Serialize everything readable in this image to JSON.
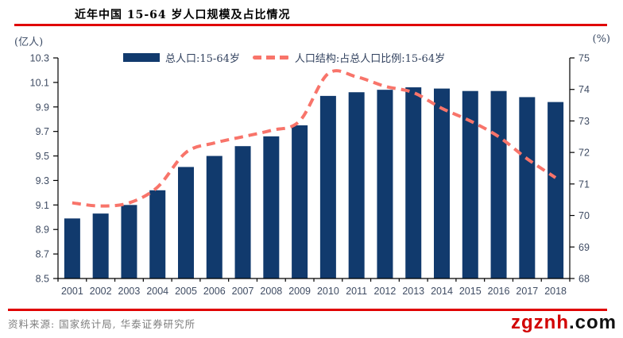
{
  "page": {
    "title": "近年中国 15-64 岁人口规模及占比情况",
    "source_note": "资料来源: 国家统计局, 华泰证券研究所",
    "watermark": {
      "brand": "zgznh",
      "suffix": ".com"
    }
  },
  "chart_data": {
    "type": "bar",
    "title": "近年中国 15-64 岁人口规模及占比情况",
    "categories": [
      "2001",
      "2002",
      "2003",
      "2004",
      "2005",
      "2006",
      "2007",
      "2008",
      "2009",
      "2010",
      "2011",
      "2012",
      "2013",
      "2014",
      "2015",
      "2016",
      "2017",
      "2018"
    ],
    "series": [
      {
        "name": "总人口:15-64岁",
        "type": "bar",
        "axis": "left",
        "unit": "亿人",
        "color": "#113a6d",
        "values": [
          8.99,
          9.03,
          9.1,
          9.22,
          9.41,
          9.5,
          9.58,
          9.66,
          9.75,
          9.99,
          10.02,
          10.04,
          10.06,
          10.05,
          10.03,
          10.03,
          9.98,
          9.94
        ]
      },
      {
        "name": "人口结构:占总人口比例:15-64岁",
        "type": "line",
        "axis": "right",
        "unit": "%",
        "color": "#f8746a",
        "dashed": true,
        "values": [
          70.4,
          70.3,
          70.4,
          70.9,
          72.0,
          72.3,
          72.5,
          72.7,
          73.0,
          74.5,
          74.4,
          74.1,
          73.9,
          73.4,
          73.0,
          72.5,
          71.8,
          71.2
        ]
      }
    ],
    "left_axis": {
      "label": "(亿人)",
      "min": 8.5,
      "max": 10.3,
      "step": 0.2,
      "ticks": [
        "8.5",
        "8.7",
        "8.9",
        "9.1",
        "9.3",
        "9.5",
        "9.7",
        "9.9",
        "10.1",
        "10.3"
      ]
    },
    "right_axis": {
      "label": "(%)",
      "min": 68,
      "max": 75,
      "step": 1,
      "ticks": [
        "68",
        "69",
        "70",
        "71",
        "72",
        "73",
        "74",
        "75"
      ]
    },
    "legend_position": "top-center",
    "grid": false,
    "tick_label_color": "#3f4c63",
    "axis_line_color": "#000000"
  }
}
